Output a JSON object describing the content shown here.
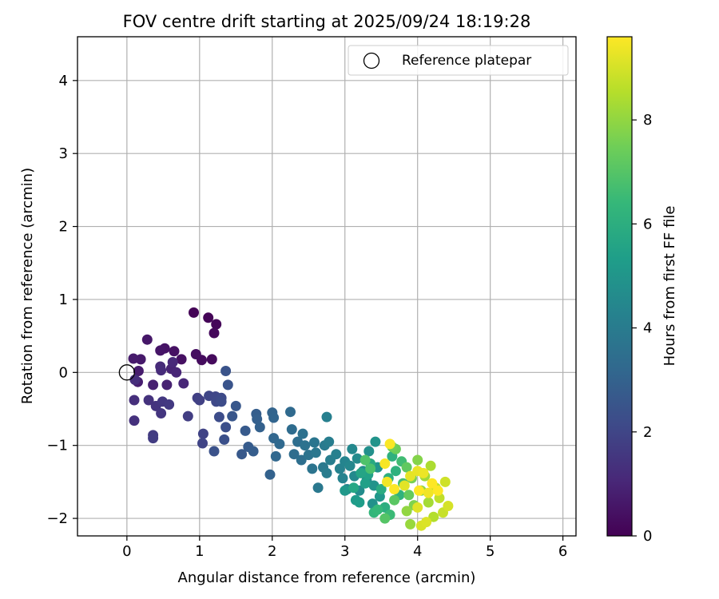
{
  "chart_data": {
    "type": "scatter",
    "title": "FOV centre drift starting at 2025/09/24 18:19:28",
    "xlabel": "Angular distance from reference (arcmin)",
    "ylabel": "Rotation from reference (arcmin)",
    "xlim": [
      -0.68,
      6.18
    ],
    "ylim": [
      -2.24,
      4.6
    ],
    "xticks": [
      0,
      1,
      2,
      3,
      4,
      5,
      6
    ],
    "yticks": [
      -2,
      -1,
      0,
      1,
      2,
      3,
      4
    ],
    "grid": true,
    "legend": {
      "position": "top-right",
      "label": "Reference platepar",
      "marker": "open-circle"
    },
    "reference_point": {
      "x": 0,
      "y": 0
    },
    "colorbar": {
      "label": "Hours from first FF file",
      "colormap": "viridis",
      "min": 0,
      "max": 9.6,
      "ticks": [
        0,
        2,
        4,
        6,
        8
      ],
      "stops": [
        "#440154",
        "#482878",
        "#3e4a89",
        "#31688e",
        "#26828e",
        "#1f9e89",
        "#35b779",
        "#6ece58",
        "#b5de2b",
        "#fde725"
      ]
    },
    "points": [
      {
        "x": 0.92,
        "y": 0.82,
        "h": 0.05
      },
      {
        "x": 1.12,
        "y": 0.75,
        "h": 0.1
      },
      {
        "x": 1.23,
        "y": 0.66,
        "h": 0.15
      },
      {
        "x": 1.2,
        "y": 0.54,
        "h": 0.2
      },
      {
        "x": 1.17,
        "y": 0.18,
        "h": 0.25
      },
      {
        "x": 1.03,
        "y": 0.17,
        "h": 0.3
      },
      {
        "x": 0.95,
        "y": 0.25,
        "h": 0.35
      },
      {
        "x": 0.75,
        "y": 0.18,
        "h": 0.4
      },
      {
        "x": 0.65,
        "y": 0.29,
        "h": 0.45
      },
      {
        "x": 0.52,
        "y": 0.33,
        "h": 0.5
      },
      {
        "x": 0.46,
        "y": 0.3,
        "h": 0.55
      },
      {
        "x": 0.28,
        "y": 0.45,
        "h": 0.6
      },
      {
        "x": 0.19,
        "y": 0.18,
        "h": 0.65
      },
      {
        "x": 0.09,
        "y": 0.19,
        "h": 0.7
      },
      {
        "x": 0.16,
        "y": 0.02,
        "h": 0.75
      },
      {
        "x": 0.15,
        "y": -0.13,
        "h": 0.8
      },
      {
        "x": 0.36,
        "y": -0.17,
        "h": 0.85
      },
      {
        "x": 0.55,
        "y": -0.17,
        "h": 0.9
      },
      {
        "x": 0.61,
        "y": 0.05,
        "h": 0.95
      },
      {
        "x": 0.68,
        "y": 0.0,
        "h": 1.0
      },
      {
        "x": 0.78,
        "y": -0.15,
        "h": 1.05
      },
      {
        "x": 0.63,
        "y": 0.14,
        "h": 1.1
      },
      {
        "x": 0.46,
        "y": 0.08,
        "h": 1.15
      },
      {
        "x": 0.47,
        "y": 0.03,
        "h": 1.2
      },
      {
        "x": 0.11,
        "y": -0.1,
        "h": 1.25
      },
      {
        "x": 0.1,
        "y": -0.38,
        "h": 1.3
      },
      {
        "x": 0.1,
        "y": -0.66,
        "h": 1.35
      },
      {
        "x": 0.3,
        "y": -0.38,
        "h": 1.4
      },
      {
        "x": 0.4,
        "y": -0.46,
        "h": 1.45
      },
      {
        "x": 0.47,
        "y": -0.56,
        "h": 1.5
      },
      {
        "x": 0.49,
        "y": -0.4,
        "h": 1.55
      },
      {
        "x": 0.58,
        "y": -0.44,
        "h": 1.6
      },
      {
        "x": 0.36,
        "y": -0.86,
        "h": 1.65
      },
      {
        "x": 0.36,
        "y": -0.9,
        "h": 1.7
      },
      {
        "x": 0.84,
        "y": -0.6,
        "h": 1.75
      },
      {
        "x": 0.97,
        "y": -0.35,
        "h": 1.8
      },
      {
        "x": 1.0,
        "y": -0.38,
        "h": 1.85
      },
      {
        "x": 1.05,
        "y": -0.84,
        "h": 1.9
      },
      {
        "x": 1.04,
        "y": -0.97,
        "h": 1.95
      },
      {
        "x": 1.13,
        "y": -0.32,
        "h": 2.0
      },
      {
        "x": 1.22,
        "y": -0.33,
        "h": 2.05
      },
      {
        "x": 1.23,
        "y": -0.4,
        "h": 2.1
      },
      {
        "x": 1.3,
        "y": -0.35,
        "h": 2.15
      },
      {
        "x": 1.3,
        "y": -0.4,
        "h": 2.2
      },
      {
        "x": 1.27,
        "y": -0.61,
        "h": 2.25
      },
      {
        "x": 1.36,
        "y": -0.75,
        "h": 2.3
      },
      {
        "x": 1.34,
        "y": -0.92,
        "h": 2.35
      },
      {
        "x": 1.2,
        "y": -1.08,
        "h": 2.4
      },
      {
        "x": 1.36,
        "y": 0.02,
        "h": 2.45
      },
      {
        "x": 1.39,
        "y": -0.17,
        "h": 2.5
      },
      {
        "x": 1.45,
        "y": -0.6,
        "h": 2.55
      },
      {
        "x": 1.5,
        "y": -0.46,
        "h": 2.6
      },
      {
        "x": 1.58,
        "y": -1.12,
        "h": 2.65
      },
      {
        "x": 1.63,
        "y": -0.8,
        "h": 2.7
      },
      {
        "x": 1.67,
        "y": -1.02,
        "h": 2.75
      },
      {
        "x": 1.74,
        "y": -1.08,
        "h": 2.8
      },
      {
        "x": 1.78,
        "y": -0.57,
        "h": 2.85
      },
      {
        "x": 1.79,
        "y": -0.64,
        "h": 2.9
      },
      {
        "x": 1.83,
        "y": -0.75,
        "h": 2.95
      },
      {
        "x": 1.97,
        "y": -1.4,
        "h": 3.0
      },
      {
        "x": 2.0,
        "y": -0.55,
        "h": 3.05
      },
      {
        "x": 2.02,
        "y": -0.62,
        "h": 3.1
      },
      {
        "x": 2.02,
        "y": -0.9,
        "h": 3.15
      },
      {
        "x": 2.05,
        "y": -1.15,
        "h": 3.2
      },
      {
        "x": 2.1,
        "y": -0.98,
        "h": 3.25
      },
      {
        "x": 2.25,
        "y": -0.54,
        "h": 3.3
      },
      {
        "x": 2.27,
        "y": -0.78,
        "h": 3.35
      },
      {
        "x": 2.3,
        "y": -1.12,
        "h": 3.4
      },
      {
        "x": 2.35,
        "y": -0.95,
        "h": 3.45
      },
      {
        "x": 2.4,
        "y": -1.2,
        "h": 3.5
      },
      {
        "x": 2.42,
        "y": -0.84,
        "h": 3.55
      },
      {
        "x": 2.45,
        "y": -1.0,
        "h": 3.6
      },
      {
        "x": 2.5,
        "y": -1.13,
        "h": 3.65
      },
      {
        "x": 2.55,
        "y": -1.32,
        "h": 3.7
      },
      {
        "x": 2.58,
        "y": -0.96,
        "h": 3.75
      },
      {
        "x": 2.6,
        "y": -1.1,
        "h": 3.8
      },
      {
        "x": 2.63,
        "y": -1.58,
        "h": 3.85
      },
      {
        "x": 2.7,
        "y": -1.3,
        "h": 3.9
      },
      {
        "x": 2.72,
        "y": -1.0,
        "h": 3.95
      },
      {
        "x": 2.75,
        "y": -1.38,
        "h": 4.0
      },
      {
        "x": 2.78,
        "y": -0.95,
        "h": 4.05
      },
      {
        "x": 2.8,
        "y": -1.2,
        "h": 4.1
      },
      {
        "x": 2.75,
        "y": -0.61,
        "h": 4.15
      },
      {
        "x": 2.88,
        "y": -1.12,
        "h": 4.2
      },
      {
        "x": 2.93,
        "y": -1.32,
        "h": 4.25
      },
      {
        "x": 2.97,
        "y": -1.45,
        "h": 4.3
      },
      {
        "x": 3.0,
        "y": -1.22,
        "h": 4.35
      },
      {
        "x": 3.03,
        "y": -1.6,
        "h": 4.4
      },
      {
        "x": 3.07,
        "y": -1.28,
        "h": 4.45
      },
      {
        "x": 3.1,
        "y": -1.05,
        "h": 4.5
      },
      {
        "x": 3.13,
        "y": -1.42,
        "h": 4.55
      },
      {
        "x": 3.17,
        "y": -1.18,
        "h": 4.6
      },
      {
        "x": 3.2,
        "y": -1.62,
        "h": 4.65
      },
      {
        "x": 3.25,
        "y": -1.35,
        "h": 4.7
      },
      {
        "x": 3.3,
        "y": -1.48,
        "h": 4.75
      },
      {
        "x": 3.33,
        "y": -1.08,
        "h": 4.8
      },
      {
        "x": 3.38,
        "y": -1.8,
        "h": 4.85
      },
      {
        "x": 3.4,
        "y": -1.55,
        "h": 4.9
      },
      {
        "x": 3.42,
        "y": -0.95,
        "h": 4.95
      },
      {
        "x": 3.45,
        "y": -1.3,
        "h": 5.0
      },
      {
        "x": 3.48,
        "y": -1.7,
        "h": 5.05
      },
      {
        "x": 3.0,
        "y": -1.62,
        "h": 5.1
      },
      {
        "x": 3.15,
        "y": -1.75,
        "h": 5.2
      },
      {
        "x": 3.2,
        "y": -1.78,
        "h": 5.3
      },
      {
        "x": 3.28,
        "y": -1.52,
        "h": 5.4
      },
      {
        "x": 3.32,
        "y": -1.4,
        "h": 5.5
      },
      {
        "x": 3.22,
        "y": -1.38,
        "h": 5.6
      },
      {
        "x": 3.12,
        "y": -1.58,
        "h": 5.7
      },
      {
        "x": 3.35,
        "y": -1.25,
        "h": 5.8
      },
      {
        "x": 3.5,
        "y": -1.6,
        "h": 5.9
      },
      {
        "x": 3.55,
        "y": -1.85,
        "h": 6.0
      },
      {
        "x": 3.6,
        "y": -1.45,
        "h": 6.05
      },
      {
        "x": 3.65,
        "y": -1.15,
        "h": 6.1
      },
      {
        "x": 3.7,
        "y": -1.35,
        "h": 6.15
      },
      {
        "x": 3.75,
        "y": -1.68,
        "h": 6.2
      },
      {
        "x": 3.4,
        "y": -1.92,
        "h": 6.3
      },
      {
        "x": 3.45,
        "y": -1.88,
        "h": 6.4
      },
      {
        "x": 3.62,
        "y": -1.95,
        "h": 6.5
      },
      {
        "x": 3.78,
        "y": -1.22,
        "h": 6.6
      },
      {
        "x": 3.8,
        "y": -1.52,
        "h": 6.7
      },
      {
        "x": 3.35,
        "y": -1.32,
        "h": 6.8
      },
      {
        "x": 3.28,
        "y": -1.2,
        "h": 6.9
      },
      {
        "x": 3.55,
        "y": -2.0,
        "h": 7.0
      },
      {
        "x": 3.68,
        "y": -1.75,
        "h": 7.1
      },
      {
        "x": 3.85,
        "y": -1.3,
        "h": 7.2
      },
      {
        "x": 3.88,
        "y": -1.68,
        "h": 7.3
      },
      {
        "x": 3.7,
        "y": -1.05,
        "h": 7.4
      },
      {
        "x": 3.65,
        "y": -1.02,
        "h": 7.5
      },
      {
        "x": 3.92,
        "y": -1.45,
        "h": 7.6
      },
      {
        "x": 3.95,
        "y": -1.82,
        "h": 7.7
      },
      {
        "x": 4.0,
        "y": -1.2,
        "h": 7.8
      },
      {
        "x": 4.05,
        "y": -1.62,
        "h": 7.9
      },
      {
        "x": 3.85,
        "y": -1.9,
        "h": 8.0
      },
      {
        "x": 3.9,
        "y": -2.08,
        "h": 8.1
      },
      {
        "x": 4.1,
        "y": -1.42,
        "h": 8.2
      },
      {
        "x": 4.15,
        "y": -1.78,
        "h": 8.3
      },
      {
        "x": 4.18,
        "y": -1.28,
        "h": 8.4
      },
      {
        "x": 4.22,
        "y": -1.98,
        "h": 8.5
      },
      {
        "x": 4.25,
        "y": -1.58,
        "h": 8.6
      },
      {
        "x": 4.3,
        "y": -1.72,
        "h": 8.7
      },
      {
        "x": 4.35,
        "y": -1.92,
        "h": 8.8
      },
      {
        "x": 4.38,
        "y": -1.5,
        "h": 8.9
      },
      {
        "x": 4.42,
        "y": -1.83,
        "h": 9.0
      },
      {
        "x": 4.05,
        "y": -2.1,
        "h": 9.05
      },
      {
        "x": 4.12,
        "y": -2.05,
        "h": 9.1
      },
      {
        "x": 4.0,
        "y": -1.85,
        "h": 9.15
      },
      {
        "x": 3.82,
        "y": -1.55,
        "h": 9.2
      },
      {
        "x": 3.9,
        "y": -1.42,
        "h": 9.25
      },
      {
        "x": 4.0,
        "y": -1.35,
        "h": 9.3
      },
      {
        "x": 4.08,
        "y": -1.38,
        "h": 9.35
      },
      {
        "x": 4.15,
        "y": -1.65,
        "h": 9.4
      },
      {
        "x": 3.58,
        "y": -1.5,
        "h": 9.45
      },
      {
        "x": 3.55,
        "y": -1.25,
        "h": 9.5
      },
      {
        "x": 3.62,
        "y": -0.98,
        "h": 9.55
      },
      {
        "x": 4.2,
        "y": -1.52,
        "h": 9.6
      },
      {
        "x": 4.28,
        "y": -1.62,
        "h": 9.6
      },
      {
        "x": 3.68,
        "y": -1.6,
        "h": 9.6
      },
      {
        "x": 4.02,
        "y": -1.62,
        "h": 9.6
      }
    ]
  }
}
